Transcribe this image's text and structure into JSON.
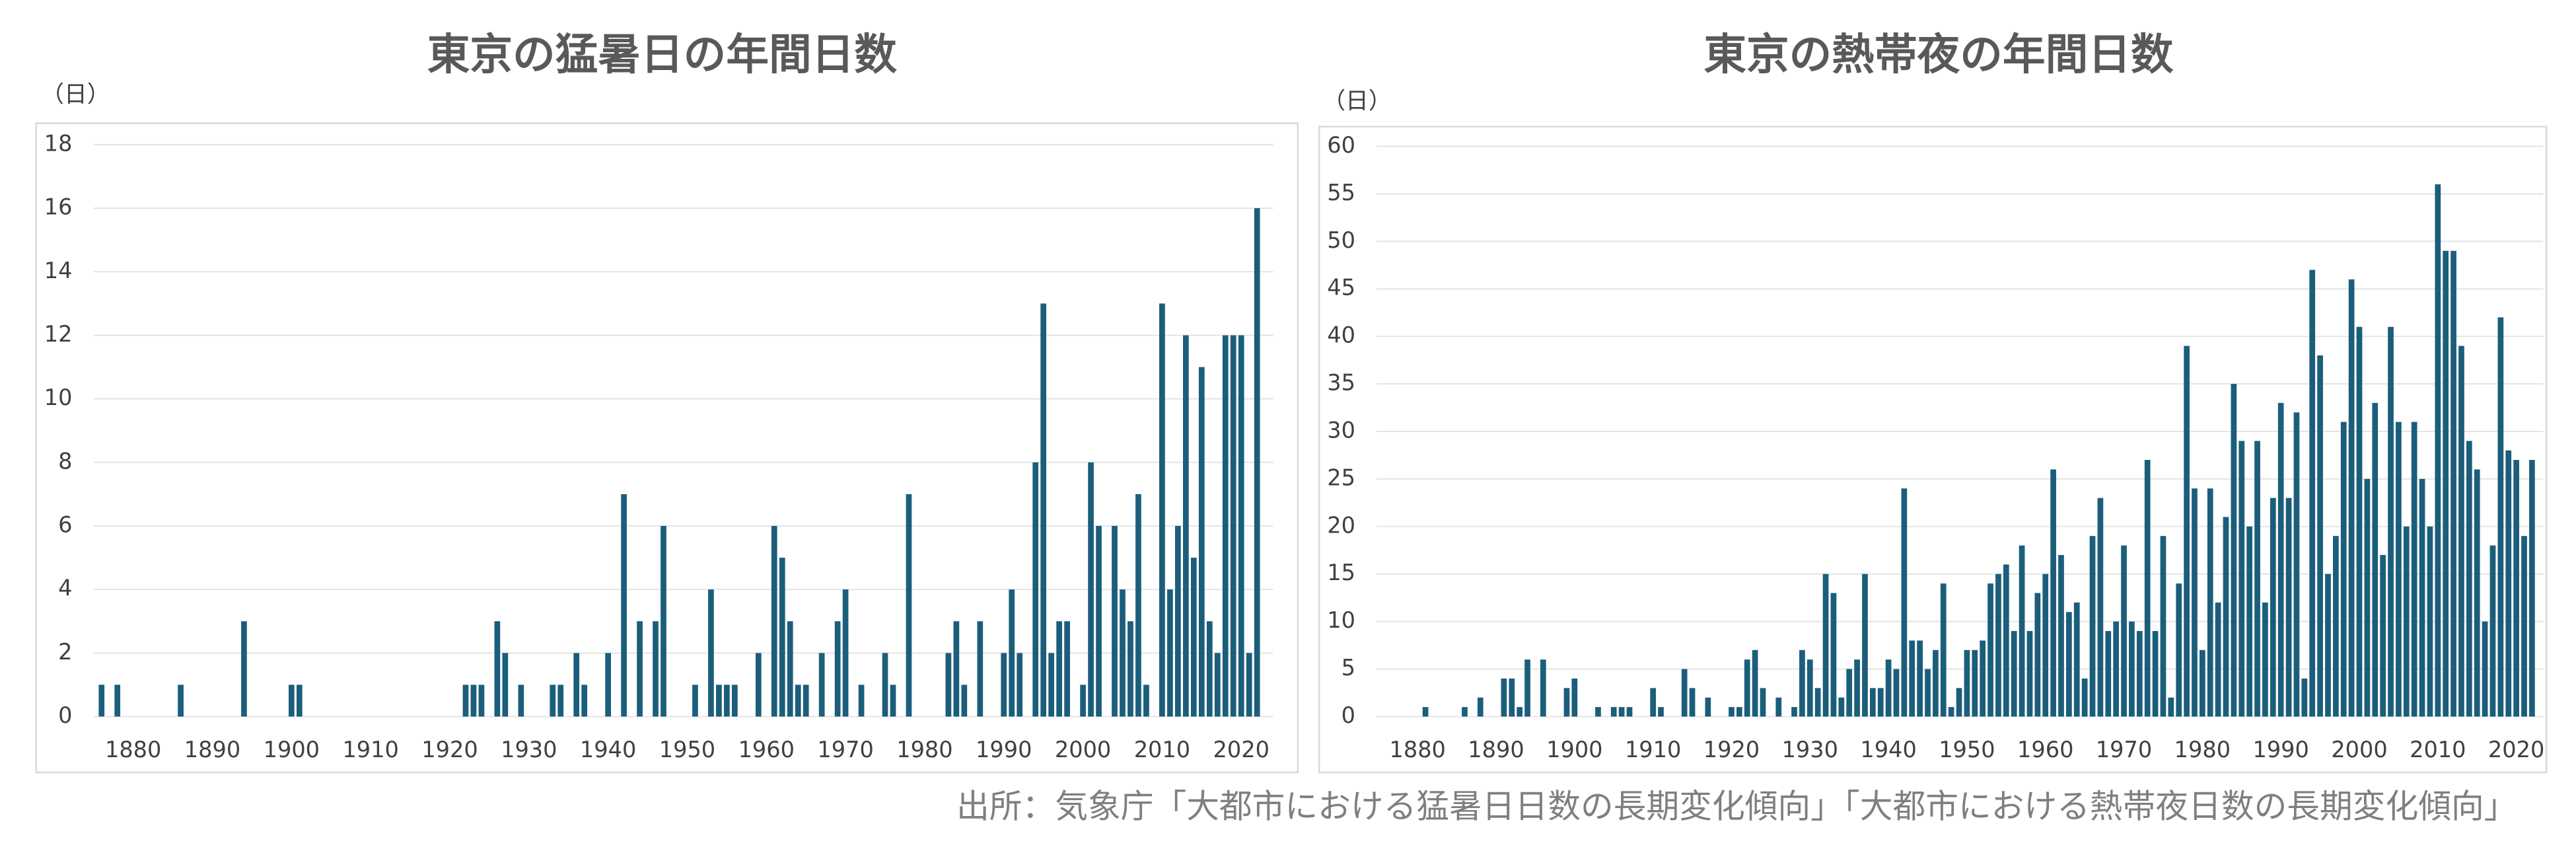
{
  "chart_data": [
    {
      "type": "bar",
      "title": "東京の猛暑日の年間日数",
      "y_label": "（日）",
      "color": "#1b5e7b",
      "x": [
        1876,
        1877,
        1878,
        1879,
        1880,
        1881,
        1882,
        1883,
        1884,
        1885,
        1886,
        1887,
        1888,
        1889,
        1890,
        1891,
        1892,
        1893,
        1894,
        1895,
        1896,
        1897,
        1898,
        1899,
        1900,
        1901,
        1902,
        1903,
        1904,
        1905,
        1906,
        1907,
        1908,
        1909,
        1910,
        1911,
        1912,
        1913,
        1914,
        1915,
        1916,
        1917,
        1918,
        1919,
        1920,
        1921,
        1922,
        1923,
        1924,
        1925,
        1926,
        1927,
        1928,
        1929,
        1930,
        1931,
        1932,
        1933,
        1934,
        1935,
        1936,
        1937,
        1938,
        1939,
        1940,
        1941,
        1942,
        1943,
        1944,
        1945,
        1946,
        1947,
        1948,
        1949,
        1950,
        1951,
        1952,
        1953,
        1954,
        1955,
        1956,
        1957,
        1958,
        1959,
        1960,
        1961,
        1962,
        1963,
        1964,
        1965,
        1966,
        1967,
        1968,
        1969,
        1970,
        1971,
        1972,
        1973,
        1974,
        1975,
        1976,
        1977,
        1978,
        1979,
        1980,
        1981,
        1982,
        1983,
        1984,
        1985,
        1986,
        1987,
        1988,
        1989,
        1990,
        1991,
        1992,
        1993,
        1994,
        1995,
        1996,
        1997,
        1998,
        1999,
        2000,
        2001,
        2002,
        2003,
        2004,
        2005,
        2006,
        2007,
        2008,
        2009,
        2010,
        2011,
        2012,
        2013,
        2014,
        2015,
        2016,
        2017,
        2018,
        2019,
        2020,
        2021,
        2022
      ],
      "values": [
        1,
        0,
        1,
        0,
        0,
        0,
        0,
        0,
        0,
        0,
        1,
        0,
        0,
        0,
        0,
        0,
        0,
        0,
        3,
        0,
        0,
        0,
        0,
        0,
        1,
        1,
        0,
        0,
        0,
        0,
        0,
        0,
        0,
        0,
        0,
        0,
        0,
        0,
        0,
        0,
        0,
        0,
        0,
        0,
        0,
        0,
        1,
        1,
        1,
        0,
        3,
        2,
        0,
        1,
        0,
        0,
        0,
        1,
        1,
        0,
        2,
        1,
        0,
        0,
        2,
        0,
        7,
        0,
        3,
        0,
        3,
        6,
        0,
        0,
        0,
        1,
        0,
        4,
        1,
        1,
        1,
        0,
        0,
        2,
        0,
        6,
        5,
        3,
        1,
        1,
        0,
        2,
        0,
        3,
        4,
        0,
        1,
        0,
        0,
        2,
        1,
        0,
        7,
        0,
        0,
        0,
        0,
        2,
        3,
        1,
        0,
        3,
        0,
        0,
        2,
        4,
        2,
        0,
        8,
        13,
        2,
        3,
        3,
        0,
        1,
        8,
        6,
        0,
        6,
        4,
        3,
        7,
        1,
        0,
        13,
        4,
        6,
        12,
        5,
        11,
        3,
        2,
        12,
        12,
        12,
        2,
        16
      ],
      "xlim": [
        1875,
        2023
      ],
      "xticks": [
        1880,
        1890,
        1900,
        1910,
        1920,
        1930,
        1940,
        1950,
        1960,
        1970,
        1980,
        1990,
        2000,
        2010,
        2020
      ],
      "ylim": [
        0,
        18
      ],
      "yticks": [
        0,
        2,
        4,
        6,
        8,
        10,
        12,
        14,
        16,
        18
      ],
      "grid": true
    },
    {
      "type": "bar",
      "title": "東京の熱帯夜の年間日数",
      "y_label": "（日）",
      "color": "#1b5e7b",
      "x": [
        1876,
        1877,
        1878,
        1879,
        1880,
        1881,
        1882,
        1883,
        1884,
        1885,
        1886,
        1887,
        1888,
        1889,
        1890,
        1891,
        1892,
        1893,
        1894,
        1895,
        1896,
        1897,
        1898,
        1899,
        1900,
        1901,
        1902,
        1903,
        1904,
        1905,
        1906,
        1907,
        1908,
        1909,
        1910,
        1911,
        1912,
        1913,
        1914,
        1915,
        1916,
        1917,
        1918,
        1919,
        1920,
        1921,
        1922,
        1923,
        1924,
        1925,
        1926,
        1927,
        1928,
        1929,
        1930,
        1931,
        1932,
        1933,
        1934,
        1935,
        1936,
        1937,
        1938,
        1939,
        1940,
        1941,
        1942,
        1943,
        1944,
        1945,
        1946,
        1947,
        1948,
        1949,
        1950,
        1951,
        1952,
        1953,
        1954,
        1955,
        1956,
        1957,
        1958,
        1959,
        1960,
        1961,
        1962,
        1963,
        1964,
        1965,
        1966,
        1967,
        1968,
        1969,
        1970,
        1971,
        1972,
        1973,
        1974,
        1975,
        1976,
        1977,
        1978,
        1979,
        1980,
        1981,
        1982,
        1983,
        1984,
        1985,
        1986,
        1987,
        1988,
        1989,
        1990,
        1991,
        1992,
        1993,
        1994,
        1995,
        1996,
        1997,
        1998,
        1999,
        2000,
        2001,
        2002,
        2003,
        2004,
        2005,
        2006,
        2007,
        2008,
        2009,
        2010,
        2011,
        2012,
        2013,
        2014,
        2015,
        2016,
        2017,
        2018,
        2019,
        2020,
        2021,
        2022
      ],
      "values": [
        0,
        0,
        0,
        0,
        0,
        1,
        0,
        0,
        0,
        0,
        1,
        0,
        2,
        0,
        0,
        4,
        4,
        1,
        6,
        0,
        6,
        0,
        0,
        3,
        4,
        0,
        0,
        1,
        0,
        1,
        1,
        1,
        0,
        0,
        3,
        1,
        0,
        0,
        5,
        3,
        0,
        2,
        0,
        0,
        1,
        1,
        6,
        7,
        3,
        0,
        2,
        0,
        1,
        7,
        6,
        3,
        15,
        13,
        2,
        5,
        6,
        15,
        3,
        3,
        6,
        5,
        24,
        8,
        8,
        5,
        7,
        14,
        1,
        3,
        7,
        7,
        8,
        14,
        15,
        16,
        9,
        18,
        9,
        13,
        15,
        26,
        17,
        11,
        12,
        4,
        19,
        23,
        9,
        10,
        18,
        10,
        9,
        27,
        9,
        19,
        2,
        14,
        39,
        24,
        7,
        24,
        12,
        21,
        35,
        29,
        20,
        29,
        12,
        23,
        33,
        23,
        32,
        4,
        47,
        38,
        15,
        19,
        31,
        46,
        41,
        25,
        33,
        17,
        41,
        31,
        20,
        31,
        25,
        20,
        56,
        49,
        49,
        39,
        29,
        26,
        10,
        18,
        42,
        28,
        27,
        19,
        27
      ],
      "xlim": [
        1875,
        2023
      ],
      "xticks": [
        1880,
        1890,
        1900,
        1910,
        1920,
        1930,
        1940,
        1950,
        1960,
        1970,
        1980,
        1990,
        2000,
        2010,
        2020
      ],
      "ylim": [
        0,
        60
      ],
      "yticks": [
        0,
        5,
        10,
        15,
        20,
        25,
        30,
        35,
        40,
        45,
        50,
        55,
        60
      ],
      "grid": true
    }
  ],
  "source": "出所：気象庁「大都市における猛暑日日数の長期変化傾向」「大都市における熱帯夜日数の長期変化傾向」"
}
